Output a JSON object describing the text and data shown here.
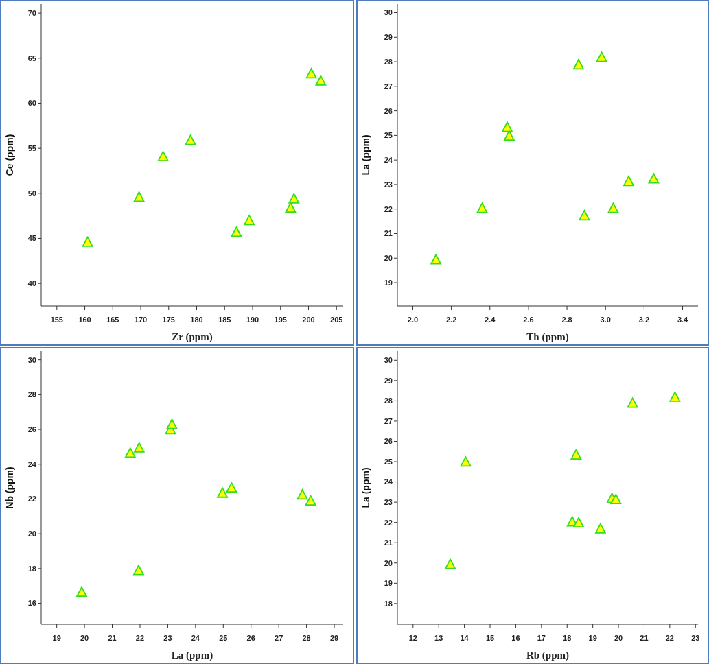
{
  "chart_data": [
    {
      "type": "scatter",
      "xlabel": "Zr (ppm)",
      "ylabel": "Ce (ppm)",
      "marker": "triangle",
      "grid": false,
      "xlim": [
        152.2,
        206.2
      ],
      "ylim": [
        37.5,
        71
      ],
      "xticks": [
        155,
        160,
        165,
        170,
        175,
        180,
        185,
        190,
        195,
        200,
        205
      ],
      "yticks": [
        40,
        45,
        50,
        55,
        60,
        65,
        70
      ],
      "series": [
        {
          "color": "#ffff00",
          "x": [
            160.5,
            169.7,
            174,
            178.9,
            187.1,
            189.4,
            196.8,
            197.4,
            200.5,
            202.2
          ],
          "values": [
            44.5,
            49.5,
            54,
            55.8,
            45.6,
            46.9,
            48.3,
            49.3,
            63.2,
            62.4
          ]
        }
      ]
    },
    {
      "type": "scatter",
      "xlabel": "Th (ppm)",
      "ylabel": "La (ppm)",
      "marker": "triangle",
      "grid": false,
      "xlim": [
        1.92,
        3.48
      ],
      "ylim": [
        18.05,
        30.35
      ],
      "xticks": [
        {
          "value": 2,
          "label": "2.0"
        },
        2.2,
        2.4,
        2.6,
        2.8,
        {
          "value": 3,
          "label": "3.0"
        },
        3.2,
        3.4
      ],
      "yticks": [
        19,
        20,
        21,
        22,
        23,
        24,
        25,
        26,
        27,
        28,
        29,
        30
      ],
      "series": [
        {
          "color": "#ffff00",
          "x": [
            2.12,
            2.36,
            2.49,
            2.5,
            2.86,
            2.98,
            2.89,
            3.04,
            3.12,
            3.25
          ],
          "values": [
            19.9,
            22.0,
            25.3,
            24.95,
            27.85,
            28.15,
            21.7,
            22.0,
            23.1,
            23.2
          ]
        }
      ]
    },
    {
      "type": "scatter",
      "xlabel": "La (ppm)",
      "ylabel": "Nb (ppm)",
      "marker": "triangle",
      "grid": false,
      "xlim": [
        18.44,
        29.32
      ],
      "ylim": [
        14.8,
        30.5
      ],
      "xticks": [
        19,
        20,
        21,
        22,
        23,
        24,
        25,
        26,
        27,
        28,
        29
      ],
      "yticks": [
        16,
        18,
        20,
        22,
        24,
        26,
        28,
        30
      ],
      "series": [
        {
          "color": "#ffff00",
          "x": [
            19.9,
            21.65,
            21.97,
            21.95,
            23.1,
            23.15,
            24.97,
            25.3,
            27.85,
            28.15
          ],
          "values": [
            16.6,
            24.6,
            24.9,
            17.85,
            25.95,
            26.25,
            22.3,
            22.6,
            22.2,
            21.85
          ]
        }
      ]
    },
    {
      "type": "scatter",
      "xlabel": "Rb (ppm)",
      "ylabel": "La (ppm)",
      "marker": "triangle",
      "grid": false,
      "xlim": [
        11.39,
        23.1
      ],
      "ylim": [
        16.98,
        30.45
      ],
      "xticks": [
        12,
        13,
        14,
        15,
        16,
        17,
        18,
        19,
        20,
        21,
        22,
        23
      ],
      "yticks": [
        18,
        19,
        20,
        21,
        22,
        23,
        24,
        25,
        26,
        27,
        28,
        29,
        30
      ],
      "series": [
        {
          "color": "#ffff00",
          "x": [
            13.45,
            14.05,
            18.2,
            18.45,
            18.35,
            19.3,
            19.75,
            19.9,
            20.55,
            22.2
          ],
          "values": [
            19.9,
            24.95,
            22.0,
            21.95,
            25.3,
            21.65,
            23.15,
            23.1,
            27.85,
            28.15
          ]
        }
      ]
    }
  ]
}
